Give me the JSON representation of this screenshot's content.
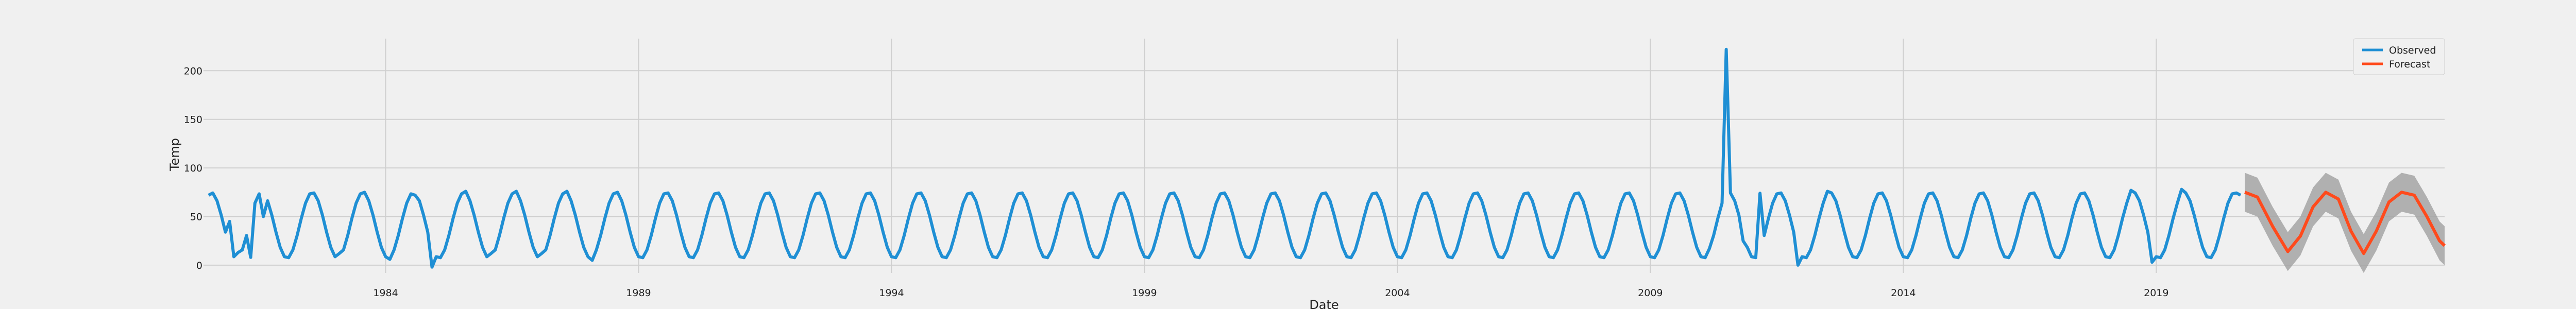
{
  "chart_data": {
    "type": "line",
    "xlabel": "Date",
    "ylabel": "Temp",
    "xlim": [
      1980.4,
      2024.7
    ],
    "ylim": [
      -8,
      233
    ],
    "x_ticks": [
      1984,
      1989,
      1994,
      1999,
      2004,
      2009,
      2014,
      2019
    ],
    "x_tick_labels": [
      "1984",
      "1989",
      "1994",
      "1999",
      "2004",
      "2009",
      "2014",
      "2019"
    ],
    "y_ticks": [
      0,
      50,
      100,
      150,
      200
    ],
    "y_tick_labels": [
      "0",
      "50",
      "100",
      "150",
      "200"
    ],
    "grid": true,
    "legend_position": "top-right",
    "legend": [
      "Observed",
      "Forecast"
    ],
    "colors": {
      "observed": "#1f8fd4",
      "forecast": "#ff4a1c",
      "confidence_band": "#a0a0a0",
      "background": "#f0f0f0",
      "grid": "#cfcfcf"
    },
    "series": [
      {
        "name": "Observed",
        "x_start": 1980.5,
        "x_end": 2020.7,
        "seasonal_model": "smooth annual cycle, peak mid-year ~75, trough ~8",
        "points": [
          [
            1980.5,
            72
          ],
          [
            1980.9,
            45
          ],
          [
            1981.1,
            13
          ],
          [
            1981.3,
            8
          ],
          [
            1981.6,
            50
          ],
          [
            1983.1,
            12
          ],
          [
            1983.6,
            75
          ],
          [
            1984.1,
            6
          ],
          [
            1984.6,
            72
          ],
          [
            1984.95,
            -2
          ],
          [
            1985.6,
            76
          ],
          [
            1986.1,
            12
          ],
          [
            1986.6,
            76
          ],
          [
            1987.1,
            12
          ],
          [
            1987.6,
            76
          ],
          [
            1988.1,
            5
          ],
          [
            1988.6,
            75
          ],
          [
            2010.15,
            17
          ],
          [
            2010.5,
            222
          ],
          [
            2010.8,
            25
          ],
          [
            2011.15,
            74
          ],
          [
            2011.95,
            0
          ],
          [
            2012.5,
            76
          ],
          [
            2018.5,
            77
          ],
          [
            2018.95,
            3
          ],
          [
            2019.5,
            78
          ],
          [
            2020.7,
            72
          ]
        ]
      },
      {
        "name": "Forecast",
        "x": [
          2020.75,
          2021.0,
          2021.3,
          2021.6,
          2021.85,
          2022.1,
          2022.35,
          2022.6,
          2022.85,
          2023.1,
          2023.35,
          2023.6,
          2023.85,
          2024.1,
          2024.35,
          2024.6,
          2024.7
        ],
        "values": [
          75,
          70,
          40,
          14,
          30,
          60,
          75,
          68,
          35,
          12,
          35,
          65,
          75,
          72,
          50,
          25,
          20
        ],
        "lower": [
          55,
          50,
          20,
          -6,
          10,
          40,
          55,
          48,
          15,
          -8,
          15,
          45,
          55,
          52,
          30,
          5,
          0
        ],
        "upper": [
          95,
          90,
          60,
          34,
          50,
          80,
          95,
          88,
          55,
          32,
          55,
          85,
          95,
          92,
          70,
          45,
          40
        ]
      }
    ]
  }
}
